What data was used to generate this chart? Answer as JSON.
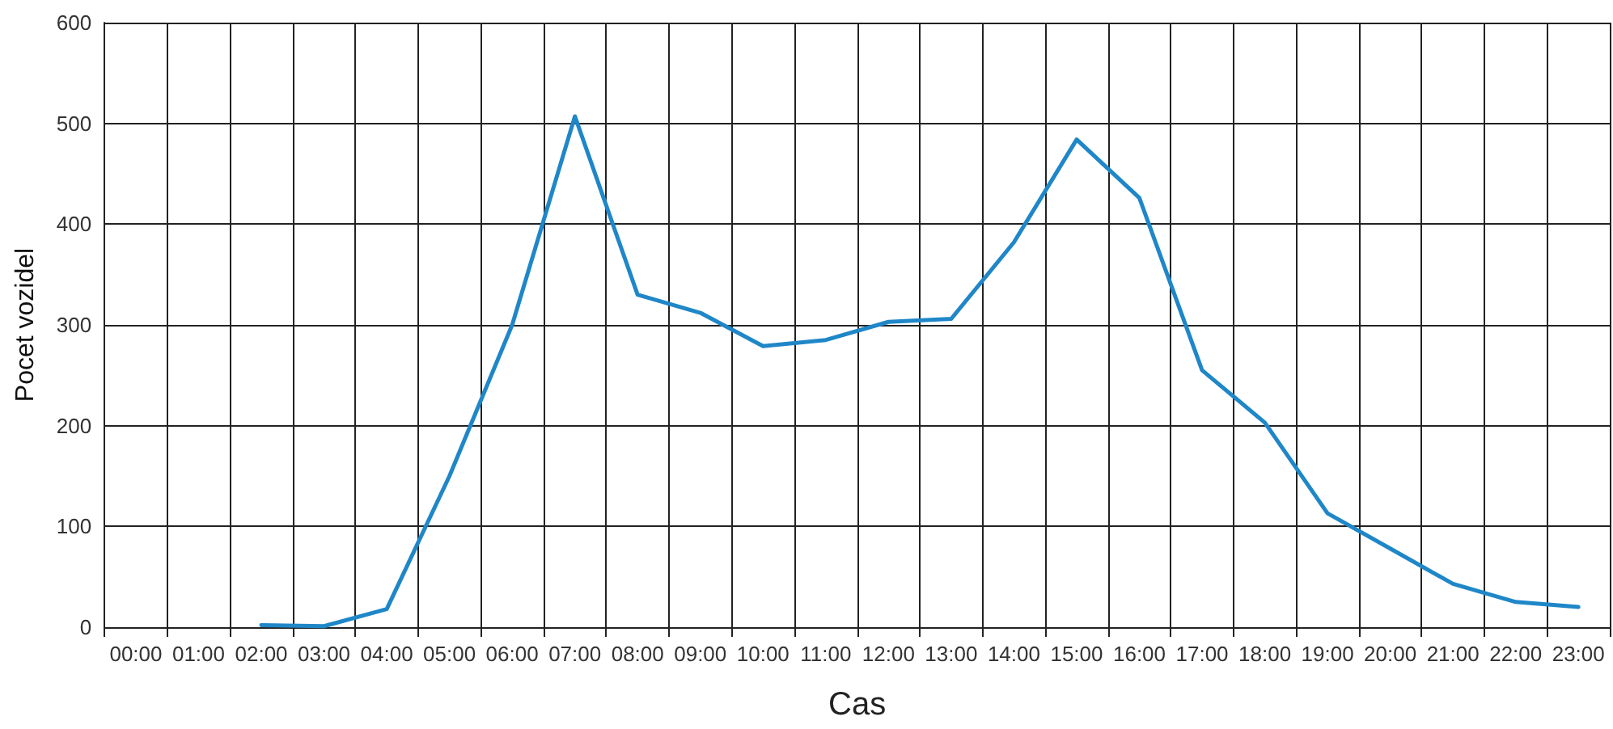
{
  "chart_data": {
    "type": "line",
    "xlabel": "Cas",
    "ylabel": "Pocet vozidel",
    "categories": [
      "00:00",
      "01:00",
      "02:00",
      "03:00",
      "04:00",
      "05:00",
      "06:00",
      "07:00",
      "08:00",
      "09:00",
      "10:00",
      "11:00",
      "12:00",
      "13:00",
      "14:00",
      "15:00",
      "16:00",
      "17:00",
      "18:00",
      "19:00",
      "20:00",
      "21:00",
      "22:00",
      "23:00"
    ],
    "series": [
      {
        "color": "#1f87c8",
        "values": [
          null,
          null,
          2,
          1,
          18,
          150,
          300,
          507,
          330,
          312,
          279,
          285,
          303,
          306,
          382,
          484,
          426,
          255,
          203,
          113,
          78,
          43,
          25,
          20
        ]
      }
    ],
    "ylim": [
      0,
      600
    ],
    "yticks": [
      0,
      100,
      200,
      300,
      400,
      500,
      600
    ],
    "grid": true,
    "marker": "none",
    "line_style": "solid"
  }
}
